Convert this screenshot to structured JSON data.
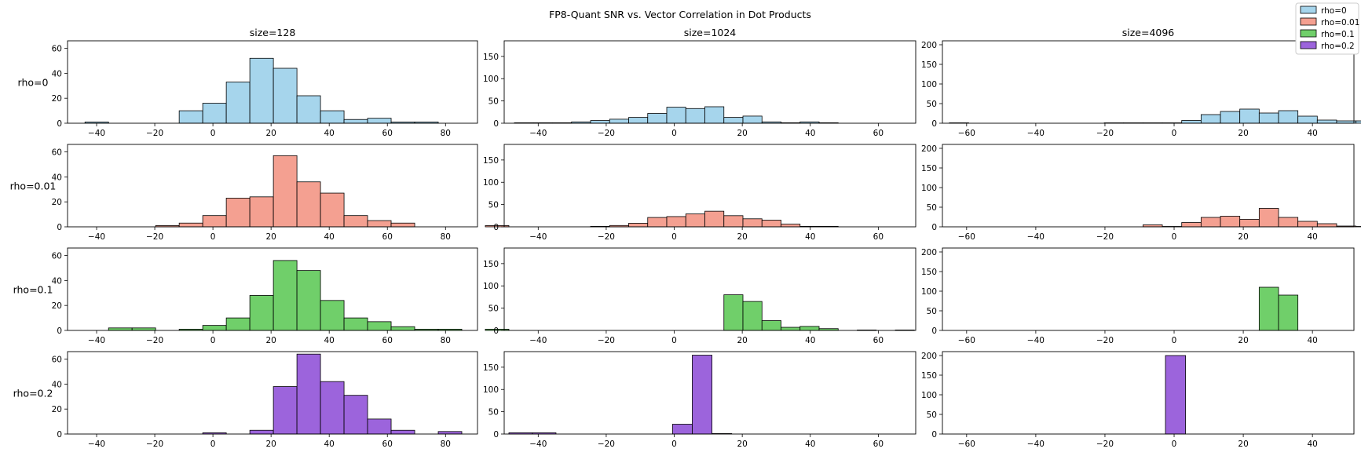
{
  "suptitle": "FP8-Quant SNR vs. Vector Correlation in Dot Products",
  "legend": {
    "placement": "top-right",
    "entries": [
      {
        "label": "rho=0",
        "color": "#a6d5ec"
      },
      {
        "label": "rho=0.01",
        "color": "#f4a091"
      },
      {
        "label": "rho=0.1",
        "color": "#70cf6a"
      },
      {
        "label": "rho=0.2",
        "color": "#9c64dc"
      }
    ]
  },
  "columns": [
    {
      "title": "size=128",
      "xlim": [
        -50,
        91
      ],
      "ylim": [
        0,
        66
      ],
      "xticks": [
        -40,
        -20,
        0,
        20,
        40,
        60,
        80
      ],
      "yticks": [
        0,
        20,
        40,
        60
      ]
    },
    {
      "title": "size=1024",
      "xlim": [
        -50,
        71
      ],
      "ylim": [
        0,
        185
      ],
      "xticks": [
        -40,
        -20,
        0,
        20,
        40,
        60
      ],
      "yticks": [
        0,
        50,
        100,
        150
      ]
    },
    {
      "title": "size=4096",
      "xlim": [
        -67,
        52
      ],
      "ylim": [
        0,
        210
      ],
      "xticks": [
        -60,
        -40,
        -20,
        0,
        20,
        40
      ],
      "yticks": [
        0,
        50,
        100,
        150,
        200
      ]
    }
  ],
  "rows": [
    "rho=0",
    "rho=0.01",
    "rho=0.1",
    "rho=0.2"
  ],
  "chart_data": [
    {
      "type": "bar",
      "row": "rho=0",
      "col": "size=128",
      "bin_start": -44,
      "bin_width": 8.1,
      "values": [
        1,
        0,
        0,
        0,
        10,
        16,
        33,
        52,
        44,
        22,
        10,
        3,
        4,
        1,
        1,
        0,
        0,
        0,
        0,
        0,
        0
      ]
    },
    {
      "type": "bar",
      "row": "rho=0",
      "col": "size=1024",
      "bin_start": -47,
      "bin_width": 5.6,
      "values": [
        1,
        1,
        1,
        3,
        6,
        9,
        13,
        22,
        36,
        33,
        37,
        13,
        16,
        3,
        1,
        3,
        1,
        0,
        0,
        0,
        0,
        0
      ]
    },
    {
      "type": "bar",
      "row": "rho=0",
      "col": "size=4096",
      "bin_start": -65,
      "bin_width": 5.6,
      "values": [
        1,
        0,
        0,
        0,
        0,
        0,
        0,
        0,
        1,
        1,
        1,
        1,
        7,
        22,
        30,
        36,
        26,
        32,
        18,
        8,
        6,
        6,
        2,
        1
      ]
    },
    {
      "type": "bar",
      "row": "rho=0.01",
      "col": "size=128",
      "bin_start": -44,
      "bin_width": 8.1,
      "values": [
        0,
        0,
        0,
        1,
        3,
        9,
        23,
        24,
        57,
        36,
        27,
        9,
        5,
        3,
        0,
        0,
        0,
        1,
        0,
        0,
        0
      ]
    },
    {
      "type": "bar",
      "row": "rho=0.01",
      "col": "size=1024",
      "bin_start": -47,
      "bin_width": 5.6,
      "values": [
        0,
        0,
        0,
        0,
        1,
        3,
        8,
        21,
        23,
        29,
        35,
        25,
        18,
        15,
        6,
        1,
        1,
        0,
        0,
        0,
        0,
        0
      ]
    },
    {
      "type": "bar",
      "row": "rho=0.01",
      "col": "size=4096",
      "bin_start": -65,
      "bin_width": 5.6,
      "values": [
        0,
        0,
        0,
        0,
        0,
        0,
        0,
        0,
        0,
        0,
        5,
        1,
        11,
        24,
        27,
        19,
        47,
        24,
        14,
        8,
        2,
        1,
        0,
        0
      ]
    },
    {
      "type": "bar",
      "row": "rho=0.1",
      "col": "size=128",
      "bin_start": -44,
      "bin_width": 8.1,
      "values": [
        0,
        2,
        2,
        0,
        1,
        4,
        10,
        28,
        56,
        48,
        24,
        10,
        7,
        3,
        1,
        1,
        0,
        1,
        0,
        0,
        0
      ]
    },
    {
      "type": "bar",
      "row": "rho=0.1",
      "col": "size=1024",
      "bin_start": -47,
      "bin_width": 5.6,
      "values": [
        0,
        0,
        0,
        0,
        0,
        0,
        0,
        0,
        0,
        0,
        0,
        80,
        65,
        22,
        7,
        9,
        4,
        0,
        1,
        0,
        1,
        0
      ]
    },
    {
      "type": "bar",
      "row": "rho=0.1",
      "col": "size=4096",
      "bin_start": -65,
      "bin_width": 5.6,
      "values": [
        0,
        0,
        0,
        0,
        0,
        0,
        0,
        0,
        0,
        0,
        0,
        0,
        0,
        0,
        0,
        0,
        110,
        90,
        0,
        0,
        0,
        0,
        0,
        0
      ]
    },
    {
      "type": "bar",
      "row": "rho=0.2",
      "col": "size=128",
      "bin_start": -44,
      "bin_width": 8.1,
      "values": [
        0,
        0,
        0,
        0,
        0,
        1,
        0,
        3,
        38,
        64,
        42,
        31,
        12,
        3,
        0,
        2,
        0,
        0,
        1,
        1,
        0
      ]
    },
    {
      "type": "bar",
      "row": "rho=0.2",
      "col": "size=1024",
      "bin_start": -47,
      "bin_width": 5.6,
      "values": [
        0,
        0,
        0,
        0,
        0,
        0,
        0,
        0,
        0,
        0,
        0,
        0,
        0,
        0,
        0,
        0,
        0,
        0,
        0,
        0,
        0,
        0
      ]
    },
    {
      "type": "bar",
      "row": "rho=0.2",
      "col": "size=4096",
      "bin_start": -65,
      "bin_width": 5.6,
      "values": [
        0,
        0,
        0,
        0,
        0,
        0,
        0,
        0,
        0,
        0,
        0,
        0,
        0,
        0,
        0,
        0,
        0,
        0,
        0,
        0,
        0,
        0,
        0,
        0
      ]
    }
  ],
  "special_bars": [
    {
      "row": "rho=0.2",
      "col": "size=1024",
      "bins": [
        {
          "x0": -0.5,
          "x1": 5.3,
          "value": 22
        },
        {
          "x0": 5.3,
          "x1": 11.1,
          "value": 177
        },
        {
          "x0": 11.1,
          "x1": 16.9,
          "value": 1
        }
      ]
    },
    {
      "row": "rho=0.2",
      "col": "size=4096",
      "bins": [
        {
          "x0": -2.5,
          "x1": 3.3,
          "value": 200
        }
      ]
    }
  ]
}
